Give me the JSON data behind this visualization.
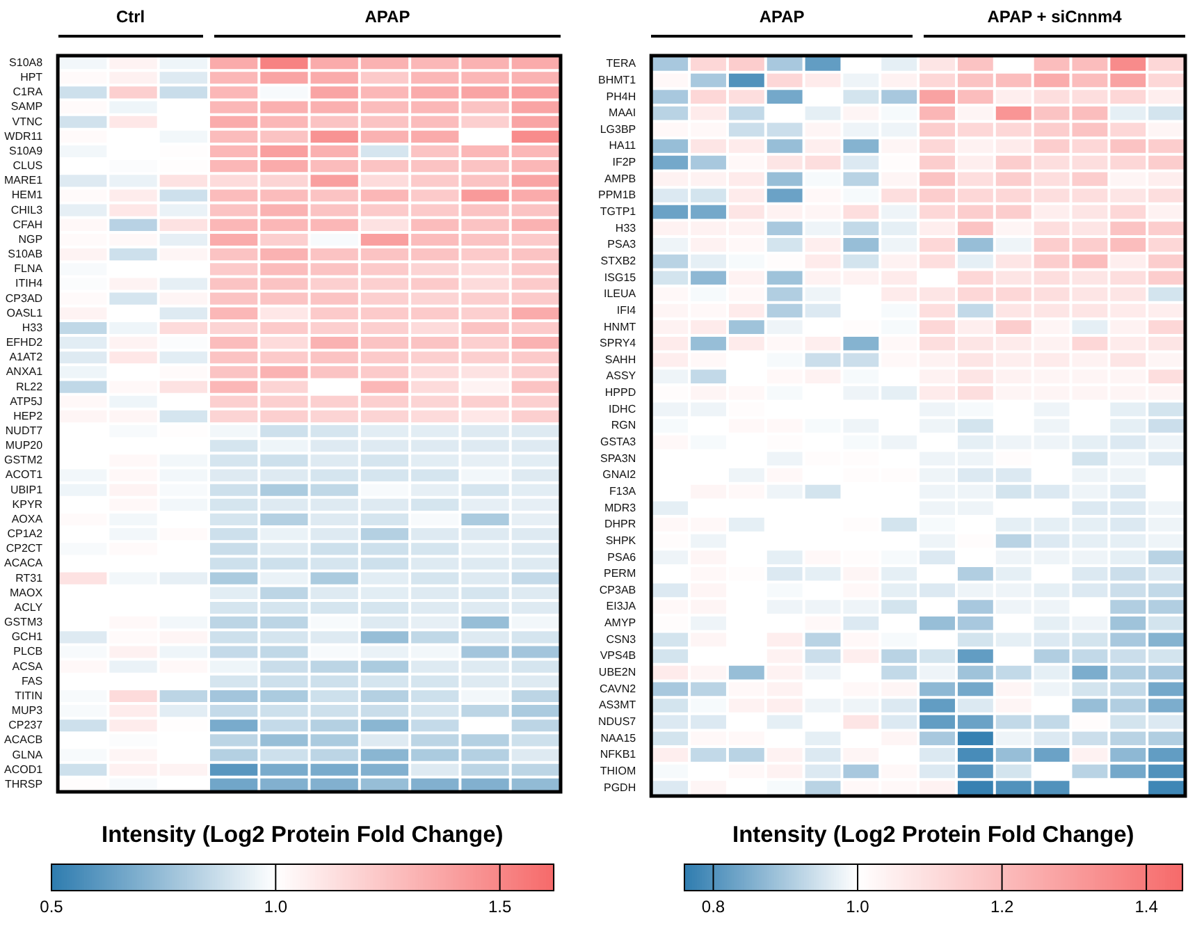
{
  "chart_data": [
    {
      "type": "heatmap",
      "clabel": "Intensity (Log2 Protein Fold Change)",
      "annotations": [
        "Ctrl",
        "APAP"
      ],
      "tick_labels": "y",
      "grid": false,
      "clim": [
        0.5,
        1.62
      ],
      "cticks": [
        0.5,
        {
          "value": 1,
          "label": "1.0"
        },
        1.5
      ],
      "categories": [
        null,
        null,
        null,
        null,
        null,
        null,
        null,
        null,
        null,
        null
      ],
      "y_categories": [
        "S10A8",
        "HPT",
        "C1RA",
        "SAMP",
        "VTNC",
        "WDR11",
        "S10A9",
        "CLUS",
        "MARE1",
        "HEM1",
        "CHIL3",
        "CFAH",
        "NGP",
        "S10AB",
        "FLNA",
        "ITIH4",
        "CP3AD",
        "OASL1",
        "H33",
        "EFHD2",
        "A1AT2",
        "ANXA1",
        "RL22",
        "ATP5J",
        "HEP2",
        "NUDT7",
        "MUP20",
        "GSTM2",
        "ACOT1",
        "UBIP1",
        "KPYR",
        "AOXA",
        "CP1A2",
        "CP2CT",
        "ACACA",
        "RT31",
        "MAOX",
        "ACLY",
        "GSTM3",
        "GCH1",
        "PLCB",
        "ACSA",
        "FAS",
        "TITIN",
        "MUP3",
        "CP237",
        "ACACB",
        "GLNA",
        "ACOD1",
        "THRSP"
      ],
      "cells": [
        [
          0.97,
          1.05,
          0.96,
          1.35,
          1.52,
          1.35,
          1.32,
          1.3,
          1.32,
          1.35
        ],
        [
          1.02,
          1.06,
          0.92,
          1.3,
          1.38,
          1.35,
          1.22,
          1.3,
          1.3,
          1.32
        ],
        [
          0.88,
          1.2,
          0.87,
          1.3,
          0.98,
          1.38,
          1.3,
          1.35,
          1.38,
          1.4
        ],
        [
          1.02,
          0.96,
          1.0,
          1.3,
          1.33,
          1.33,
          1.28,
          1.3,
          1.25,
          1.38
        ],
        [
          0.89,
          1.1,
          1.0,
          1.35,
          1.3,
          1.25,
          1.25,
          1.28,
          1.2,
          1.38
        ],
        [
          1.02,
          1.0,
          0.97,
          1.28,
          1.25,
          1.45,
          1.32,
          1.35,
          1.0,
          1.48
        ],
        [
          0.97,
          1.0,
          1.01,
          1.3,
          1.4,
          1.33,
          0.9,
          1.25,
          1.3,
          1.3
        ],
        [
          1.0,
          0.99,
          1.01,
          1.3,
          1.35,
          1.28,
          1.25,
          1.25,
          1.25,
          1.3
        ],
        [
          0.92,
          0.95,
          1.12,
          1.15,
          1.18,
          1.4,
          1.15,
          1.22,
          1.25,
          1.38
        ],
        [
          1.02,
          1.08,
          0.88,
          1.28,
          1.28,
          1.25,
          1.3,
          1.22,
          1.42,
          1.35
        ],
        [
          0.94,
          1.1,
          0.95,
          1.25,
          1.32,
          1.25,
          1.22,
          1.22,
          1.25,
          1.25
        ],
        [
          1.03,
          0.83,
          1.12,
          1.3,
          1.3,
          1.3,
          1.12,
          1.28,
          1.25,
          1.32
        ],
        [
          1.02,
          1.03,
          0.94,
          1.35,
          1.2,
          0.98,
          1.4,
          1.28,
          1.25,
          1.22
        ],
        [
          1.05,
          0.88,
          1.04,
          1.25,
          1.32,
          1.25,
          1.25,
          1.25,
          1.22,
          1.25
        ],
        [
          0.98,
          1.0,
          1.0,
          1.22,
          1.28,
          1.25,
          1.22,
          1.18,
          1.15,
          1.22
        ],
        [
          0.99,
          1.05,
          0.94,
          1.25,
          1.25,
          1.2,
          1.2,
          1.22,
          1.15,
          1.22
        ],
        [
          1.02,
          0.9,
          1.04,
          1.25,
          1.25,
          1.25,
          1.2,
          1.18,
          1.2,
          1.22
        ],
        [
          1.05,
          1.0,
          0.92,
          1.3,
          1.1,
          1.22,
          1.22,
          1.22,
          1.2,
          1.35
        ],
        [
          0.85,
          0.96,
          1.15,
          1.18,
          1.22,
          1.2,
          1.2,
          1.15,
          1.25,
          1.22
        ],
        [
          0.93,
          1.05,
          0.99,
          1.28,
          1.15,
          1.32,
          1.25,
          1.25,
          1.2,
          1.32
        ],
        [
          0.92,
          1.1,
          0.93,
          1.25,
          1.22,
          1.25,
          1.22,
          1.2,
          1.2,
          1.22
        ],
        [
          0.96,
          1.0,
          1.02,
          1.25,
          1.32,
          1.25,
          1.22,
          1.15,
          1.12,
          1.2
        ],
        [
          0.85,
          1.03,
          1.12,
          1.3,
          1.18,
          1.0,
          1.3,
          1.15,
          1.05,
          1.25
        ],
        [
          1.03,
          0.96,
          1.0,
          1.2,
          1.2,
          1.2,
          1.2,
          1.18,
          1.2,
          1.2
        ],
        [
          1.04,
          1.04,
          0.9,
          1.18,
          1.2,
          1.18,
          1.18,
          1.15,
          1.1,
          1.2
        ],
        [
          1.0,
          0.98,
          1.01,
          0.97,
          0.88,
          0.9,
          0.93,
          0.93,
          0.92,
          0.92
        ],
        [
          1.0,
          1.0,
          1.0,
          0.9,
          0.96,
          0.92,
          0.92,
          0.92,
          0.92,
          0.92
        ],
        [
          1.0,
          1.03,
          0.97,
          0.9,
          0.88,
          0.92,
          0.9,
          0.93,
          0.94,
          0.93
        ],
        [
          0.97,
          1.03,
          0.97,
          0.92,
          0.92,
          0.9,
          0.9,
          0.9,
          0.97,
          0.92
        ],
        [
          0.96,
          1.05,
          0.98,
          0.88,
          0.8,
          0.85,
          0.98,
          0.94,
          0.9,
          0.93
        ],
        [
          1.0,
          1.03,
          0.97,
          0.9,
          0.92,
          0.92,
          0.92,
          0.9,
          0.94,
          0.94
        ],
        [
          1.02,
          0.97,
          1.0,
          0.9,
          0.82,
          0.92,
          0.9,
          0.98,
          0.8,
          0.94
        ],
        [
          1.0,
          0.97,
          1.02,
          0.88,
          0.95,
          0.92,
          0.82,
          0.92,
          0.92,
          0.92
        ],
        [
          0.98,
          1.02,
          1.0,
          0.87,
          0.92,
          0.88,
          0.88,
          0.9,
          0.94,
          0.92
        ],
        [
          1.0,
          1.0,
          1.0,
          0.88,
          0.88,
          0.9,
          0.88,
          0.92,
          0.92,
          0.92
        ],
        [
          1.12,
          0.97,
          0.94,
          0.8,
          0.95,
          0.8,
          0.93,
          0.9,
          0.92,
          0.86
        ],
        [
          1.0,
          1.0,
          1.0,
          0.93,
          0.84,
          0.92,
          0.93,
          0.92,
          0.9,
          0.92
        ],
        [
          1.0,
          1.0,
          1.0,
          0.9,
          0.9,
          0.9,
          0.9,
          0.92,
          0.92,
          0.92
        ],
        [
          1.0,
          1.03,
          0.97,
          0.84,
          0.84,
          0.98,
          0.92,
          0.94,
          0.75,
          0.97
        ],
        [
          0.92,
          1.02,
          1.04,
          0.88,
          0.9,
          0.92,
          0.75,
          0.85,
          0.92,
          0.9
        ],
        [
          0.98,
          1.06,
          0.96,
          0.86,
          0.85,
          0.98,
          0.95,
          0.97,
          0.78,
          0.78
        ],
        [
          1.03,
          0.95,
          1.03,
          0.96,
          0.87,
          0.84,
          0.8,
          0.92,
          0.92,
          0.9
        ],
        [
          1.0,
          1.0,
          1.0,
          0.9,
          0.88,
          0.88,
          0.9,
          0.9,
          0.92,
          0.92
        ],
        [
          0.98,
          1.15,
          0.84,
          0.78,
          0.8,
          0.88,
          0.82,
          0.88,
          0.97,
          0.84
        ],
        [
          0.98,
          1.08,
          0.93,
          0.86,
          0.88,
          0.88,
          0.87,
          0.9,
          0.84,
          0.8
        ],
        [
          0.88,
          1.08,
          1.01,
          0.68,
          0.86,
          0.82,
          0.72,
          0.86,
          1.0,
          0.84
        ],
        [
          1.0,
          0.99,
          1.0,
          0.84,
          0.75,
          0.8,
          0.92,
          0.84,
          0.82,
          0.88
        ],
        [
          0.98,
          1.04,
          1.0,
          0.82,
          0.88,
          0.84,
          0.72,
          0.8,
          0.82,
          0.92
        ],
        [
          0.88,
          1.06,
          1.05,
          0.6,
          0.68,
          0.68,
          0.7,
          0.92,
          0.84,
          0.84
        ],
        [
          1.01,
          0.98,
          1.0,
          0.66,
          0.7,
          0.7,
          0.75,
          0.7,
          0.7,
          0.74
        ]
      ]
    },
    {
      "type": "heatmap",
      "clabel": "Intensity (Log2 Protein Fold Change)",
      "annotations": [
        "APAP",
        "APAP + siCnnm4"
      ],
      "tick_labels": "y",
      "grid": false,
      "clim": [
        0.76,
        1.45
      ],
      "cticks": [
        0.8,
        {
          "value": 1,
          "label": "1.0"
        },
        1.2,
        1.4
      ],
      "categories": [
        null,
        null,
        null,
        null,
        null,
        null,
        null,
        null,
        null,
        null,
        null,
        null,
        null,
        null
      ],
      "y_categories": [
        "TERA",
        "BHMT1",
        "PH4H",
        "MAAI",
        "LG3BP",
        "HA11",
        "IF2P",
        "AMPB",
        "PPM1B",
        "TGTP1",
        "H33",
        "PSA3",
        "STXB2",
        "ISG15",
        "ILEUA",
        "IFI4",
        "HNMT",
        "SPRY4",
        "SAHH",
        "ASSY",
        "HPPD",
        "IDHC",
        "RGN",
        "GSTA3",
        "SPA3N",
        "GNAI2",
        "F13A",
        "MDR3",
        "DHPR",
        "SHPK",
        "PSA6",
        "PERM",
        "CP3AB",
        "EI3JA",
        "AMYP",
        "CSN3",
        "VPS4B",
        "UBE2N",
        "CAVN2",
        "AS3MT",
        "NDUS7",
        "NAA15",
        "NFKB1",
        "THIOM",
        "PGDH"
      ],
      "cells": [
        [
          0.9,
          1.12,
          1.15,
          0.9,
          0.82,
          1.0,
          0.97,
          1.08,
          1.18,
          1.0,
          1.2,
          1.2,
          1.35,
          1.12
        ],
        [
          1.02,
          0.9,
          0.8,
          1.12,
          1.06,
          0.98,
          1.04,
          1.12,
          1.18,
          1.2,
          1.25,
          1.2,
          1.28,
          1.12
        ],
        [
          0.9,
          1.12,
          1.1,
          0.84,
          1.0,
          0.95,
          0.9,
          1.28,
          1.2,
          1.05,
          1.1,
          1.1,
          1.12,
          1.05
        ],
        [
          0.92,
          1.06,
          0.93,
          1.0,
          0.97,
          1.03,
          0.99,
          1.22,
          1.03,
          1.32,
          1.18,
          1.2,
          0.97,
          0.95
        ],
        [
          1.02,
          1.02,
          0.94,
          0.94,
          1.03,
          0.98,
          0.98,
          1.15,
          1.12,
          1.12,
          1.15,
          1.18,
          1.12,
          1.03
        ],
        [
          0.88,
          1.08,
          1.06,
          0.88,
          1.05,
          0.86,
          1.03,
          1.12,
          1.04,
          1.06,
          1.15,
          1.12,
          1.18,
          1.15
        ],
        [
          0.84,
          0.9,
          1.02,
          1.08,
          1.1,
          0.96,
          1.01,
          1.15,
          1.05,
          1.15,
          1.1,
          1.1,
          1.12,
          1.15
        ],
        [
          1.04,
          1.04,
          1.06,
          0.88,
          0.99,
          0.92,
          1.03,
          1.18,
          1.1,
          1.15,
          1.1,
          1.15,
          1.03,
          1.05
        ],
        [
          0.96,
          0.95,
          1.06,
          0.83,
          1.02,
          0.99,
          1.1,
          1.15,
          1.12,
          1.12,
          1.1,
          1.1,
          1.08,
          1.1
        ],
        [
          0.83,
          0.84,
          1.08,
          1.04,
          1.03,
          1.1,
          0.98,
          1.12,
          1.15,
          1.15,
          1.05,
          1.08,
          1.12,
          1.04
        ],
        [
          1.04,
          1.04,
          1.04,
          0.9,
          0.98,
          0.93,
          0.97,
          1.05,
          1.18,
          1.03,
          1.1,
          1.08,
          1.18,
          1.15
        ],
        [
          0.98,
          1.04,
          1.02,
          0.95,
          1.05,
          0.88,
          0.98,
          1.12,
          0.88,
          0.98,
          1.15,
          1.15,
          1.2,
          1.12
        ],
        [
          0.92,
          0.97,
          0.99,
          1.01,
          1.06,
          0.95,
          1.04,
          1.1,
          0.97,
          1.08,
          1.15,
          1.2,
          1.05,
          1.15
        ],
        [
          0.95,
          0.87,
          1.04,
          0.89,
          1.04,
          1.04,
          1.06,
          1.0,
          1.12,
          1.08,
          1.1,
          1.08,
          1.1,
          1.15
        ],
        [
          1.02,
          0.99,
          1.02,
          0.91,
          0.98,
          1.0,
          1.06,
          1.08,
          1.12,
          1.12,
          1.1,
          1.08,
          1.08,
          0.95
        ],
        [
          1.03,
          1.02,
          1.06,
          0.91,
          0.96,
          1.0,
          0.99,
          1.1,
          0.93,
          1.08,
          1.08,
          1.08,
          1.06,
          1.05
        ],
        [
          1.04,
          1.06,
          0.89,
          0.98,
          1.0,
          1.01,
          0.99,
          1.12,
          1.05,
          1.15,
          1.03,
          0.97,
          1.04,
          1.12
        ],
        [
          1.06,
          0.88,
          1.06,
          1.02,
          1.05,
          0.86,
          1.02,
          1.1,
          1.08,
          1.06,
          1.04,
          1.12,
          1.06,
          1.08
        ],
        [
          1.05,
          1.02,
          1.0,
          0.99,
          0.94,
          0.94,
          1.02,
          1.04,
          1.08,
          1.05,
          1.06,
          1.04,
          1.08,
          1.03
        ],
        [
          0.98,
          0.93,
          1.0,
          1.02,
          1.04,
          0.99,
          1.0,
          1.04,
          1.08,
          1.04,
          1.03,
          1.03,
          1.03,
          1.1
        ],
        [
          1.01,
          1.03,
          1.02,
          0.99,
          1.0,
          0.98,
          0.97,
          1.06,
          1.1,
          1.03,
          1.03,
          1.03,
          1.03,
          1.03
        ],
        [
          0.98,
          0.98,
          1.01,
          1.0,
          1.0,
          1.0,
          1.0,
          0.98,
          0.99,
          1.0,
          0.98,
          1.0,
          0.97,
          0.95
        ],
        [
          0.99,
          1.0,
          1.02,
          1.02,
          0.99,
          0.98,
          1.0,
          0.98,
          0.95,
          1.0,
          0.98,
          1.0,
          0.97,
          0.94
        ],
        [
          1.02,
          0.99,
          1.0,
          1.01,
          1.0,
          0.99,
          0.98,
          1.0,
          0.97,
          0.98,
          0.98,
          0.97,
          0.96,
          0.98
        ],
        [
          1.0,
          1.0,
          1.0,
          0.98,
          1.01,
          1.01,
          1.0,
          0.98,
          0.98,
          1.01,
          1.0,
          0.95,
          0.98,
          0.96
        ],
        [
          1.0,
          1.0,
          0.98,
          1.02,
          1.0,
          1.01,
          1.01,
          0.98,
          0.96,
          0.96,
          1.0,
          0.98,
          0.98,
          1.0
        ],
        [
          1.0,
          1.03,
          1.02,
          0.98,
          0.95,
          1.0,
          1.0,
          0.98,
          0.98,
          0.95,
          0.96,
          0.98,
          0.96,
          1.0
        ],
        [
          0.97,
          1.0,
          1.0,
          1.0,
          1.0,
          1.0,
          1.0,
          0.98,
          0.98,
          1.0,
          1.0,
          0.96,
          0.96,
          0.98
        ],
        [
          1.02,
          1.02,
          0.97,
          1.0,
          1.0,
          1.01,
          0.95,
          0.99,
          1.0,
          0.97,
          0.97,
          0.97,
          0.96,
          0.98
        ],
        [
          1.01,
          0.98,
          1.0,
          1.0,
          1.0,
          1.0,
          1.0,
          0.98,
          1.01,
          0.92,
          0.96,
          0.97,
          0.97,
          0.98
        ],
        [
          0.98,
          1.03,
          1.0,
          0.97,
          1.02,
          1.01,
          0.99,
          0.96,
          1.0,
          0.98,
          0.98,
          0.98,
          0.97,
          0.92
        ],
        [
          1.0,
          1.02,
          1.01,
          0.96,
          0.97,
          1.03,
          0.97,
          1.0,
          0.91,
          0.97,
          1.0,
          0.96,
          0.94,
          0.96
        ],
        [
          0.96,
          1.03,
          1.0,
          0.99,
          1.0,
          1.02,
          0.97,
          0.96,
          0.98,
          0.98,
          0.97,
          0.96,
          0.94,
          0.93
        ],
        [
          1.02,
          1.03,
          1.0,
          0.98,
          0.98,
          0.98,
          0.95,
          1.0,
          0.9,
          0.98,
          0.98,
          1.0,
          0.91,
          0.91
        ],
        [
          1.01,
          0.98,
          1.0,
          1.0,
          1.02,
          0.96,
          1.0,
          0.88,
          0.9,
          1.0,
          0.97,
          0.98,
          0.89,
          0.95
        ],
        [
          0.95,
          1.03,
          1.0,
          1.05,
          0.92,
          1.02,
          0.99,
          1.0,
          0.95,
          0.97,
          0.96,
          0.95,
          0.9,
          0.86
        ],
        [
          0.95,
          1.0,
          1.0,
          1.04,
          0.94,
          1.05,
          0.92,
          0.95,
          0.82,
          1.0,
          0.91,
          0.93,
          0.94,
          0.95
        ],
        [
          1.06,
          1.03,
          0.88,
          1.04,
          0.98,
          1.0,
          0.93,
          0.98,
          0.89,
          0.93,
          0.97,
          0.85,
          0.91,
          0.9
        ],
        [
          0.9,
          0.92,
          1.02,
          1.04,
          1.0,
          1.02,
          1.03,
          0.87,
          0.84,
          1.03,
          0.98,
          0.95,
          0.93,
          0.84
        ],
        [
          0.95,
          0.99,
          1.04,
          1.05,
          0.98,
          0.98,
          0.96,
          0.82,
          0.96,
          1.03,
          1.0,
          0.88,
          0.91,
          0.85
        ],
        [
          0.96,
          0.96,
          1.0,
          0.97,
          1.0,
          1.08,
          0.96,
          0.82,
          0.83,
          0.93,
          0.93,
          1.01,
          0.95,
          0.96
        ],
        [
          0.95,
          1.02,
          1.02,
          1.0,
          0.97,
          1.0,
          1.03,
          0.9,
          0.77,
          0.98,
          0.96,
          0.94,
          0.92,
          0.91
        ],
        [
          1.05,
          0.93,
          0.92,
          1.04,
          0.96,
          1.03,
          1.0,
          0.96,
          0.79,
          0.88,
          0.83,
          1.04,
          0.87,
          0.82
        ],
        [
          0.99,
          1.0,
          1.02,
          1.04,
          0.96,
          0.9,
          1.02,
          0.96,
          0.81,
          0.95,
          1.0,
          0.92,
          0.84,
          0.8
        ],
        [
          0.96,
          1.03,
          1.0,
          0.99,
          0.92,
          1.02,
          1.02,
          1.04,
          0.77,
          0.8,
          0.8,
          1.0,
          1.0,
          0.78
        ]
      ]
    }
  ]
}
